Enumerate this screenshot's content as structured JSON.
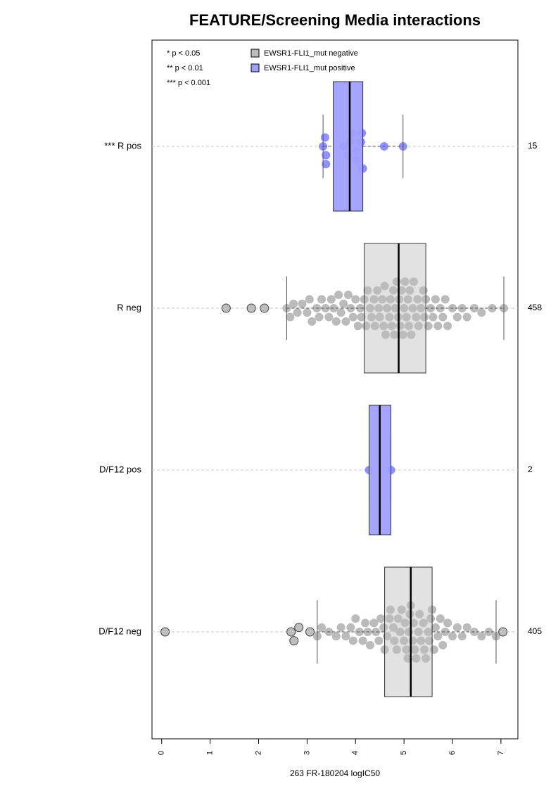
{
  "chart_data": {
    "type": "boxplot",
    "title": "FEATURE/Screening Media interactions",
    "xlabel": "263 FR-180204 logIC50",
    "xlim": [
      -0.2,
      7.35
    ],
    "xticks": [
      0,
      1,
      2,
      3,
      4,
      5,
      6,
      7
    ],
    "categories": [
      "*** R pos",
      "R neg",
      "D/F12 pos",
      "D/F12 neg"
    ],
    "counts": [
      15,
      458,
      2,
      405
    ],
    "notes": [
      "* p < 0.05",
      "** p < 0.01",
      "*** p < 0.001"
    ],
    "series": [
      {
        "name": "EWSR1-FLI1_mut negative",
        "color": "#bebebe",
        "whisker_low": [
          null,
          2.58,
          null,
          3.21
        ],
        "q1": [
          null,
          4.18,
          null,
          4.6
        ],
        "median": [
          null,
          4.89,
          null,
          5.14
        ],
        "q3": [
          null,
          5.45,
          null,
          5.58
        ],
        "whisker_high": [
          null,
          7.06,
          null,
          6.9
        ],
        "points": [
          null,
          [
            1.33,
            1.85,
            2.12,
            2.58,
            2.65,
            2.72,
            2.8,
            2.9,
            3.0,
            3.05,
            3.1,
            3.2,
            3.25,
            3.3,
            3.38,
            3.45,
            3.5,
            3.55,
            3.6,
            3.65,
            3.7,
            3.75,
            3.8,
            3.85,
            3.9,
            3.95,
            4.0,
            4.05,
            4.1,
            4.12,
            4.18,
            4.22,
            4.25,
            4.3,
            4.33,
            4.38,
            4.4,
            4.45,
            4.48,
            4.5,
            4.55,
            4.58,
            4.6,
            4.62,
            4.65,
            4.7,
            4.72,
            4.75,
            4.78,
            4.8,
            4.82,
            4.85,
            4.88,
            4.9,
            4.92,
            4.95,
            4.98,
            5.0,
            5.02,
            5.05,
            5.08,
            5.1,
            5.12,
            5.15,
            5.18,
            5.2,
            5.25,
            5.28,
            5.3,
            5.35,
            5.4,
            5.42,
            5.45,
            5.5,
            5.55,
            5.6,
            5.65,
            5.7,
            5.75,
            5.8,
            5.85,
            5.9,
            6.0,
            6.1,
            6.2,
            6.3,
            6.45,
            6.6,
            6.82,
            7.06
          ],
          null,
          [
            0.07,
            2.67,
            2.73,
            2.83,
            3.06,
            3.21,
            3.3,
            3.45,
            3.6,
            3.7,
            3.8,
            3.9,
            3.95,
            4.0,
            4.08,
            4.15,
            4.2,
            4.25,
            4.3,
            4.38,
            4.42,
            4.48,
            4.52,
            4.58,
            4.6,
            4.65,
            4.7,
            4.72,
            4.78,
            4.8,
            4.85,
            4.88,
            4.92,
            4.95,
            5.0,
            5.02,
            5.05,
            5.08,
            5.1,
            5.12,
            5.14,
            5.18,
            5.2,
            5.22,
            5.25,
            5.3,
            5.32,
            5.35,
            5.4,
            5.42,
            5.45,
            5.5,
            5.52,
            5.55,
            5.58,
            5.62,
            5.65,
            5.7,
            5.75,
            5.8,
            5.85,
            5.9,
            6.0,
            6.1,
            6.2,
            6.3,
            6.45,
            6.6,
            6.75,
            6.9,
            7.04
          ]
        ]
      },
      {
        "name": "EWSR1-FLI1_mut positive",
        "color": "#a0a0ff",
        "whisker_low": [
          3.33,
          null,
          4.28,
          null
        ],
        "q1": [
          3.54,
          null,
          4.28,
          null
        ],
        "median": [
          3.88,
          null,
          4.5,
          null
        ],
        "q3": [
          4.15,
          null,
          4.73,
          null
        ],
        "whisker_high": [
          4.98,
          null,
          4.73,
          null
        ],
        "points": [
          [
            3.33,
            3.39,
            3.37,
            3.39,
            3.75,
            3.84,
            3.89,
            3.92,
            4.02,
            4.03,
            4.11,
            4.13,
            4.15,
            4.59,
            4.98
          ],
          null,
          [
            4.28,
            4.73
          ],
          null
        ]
      }
    ]
  }
}
